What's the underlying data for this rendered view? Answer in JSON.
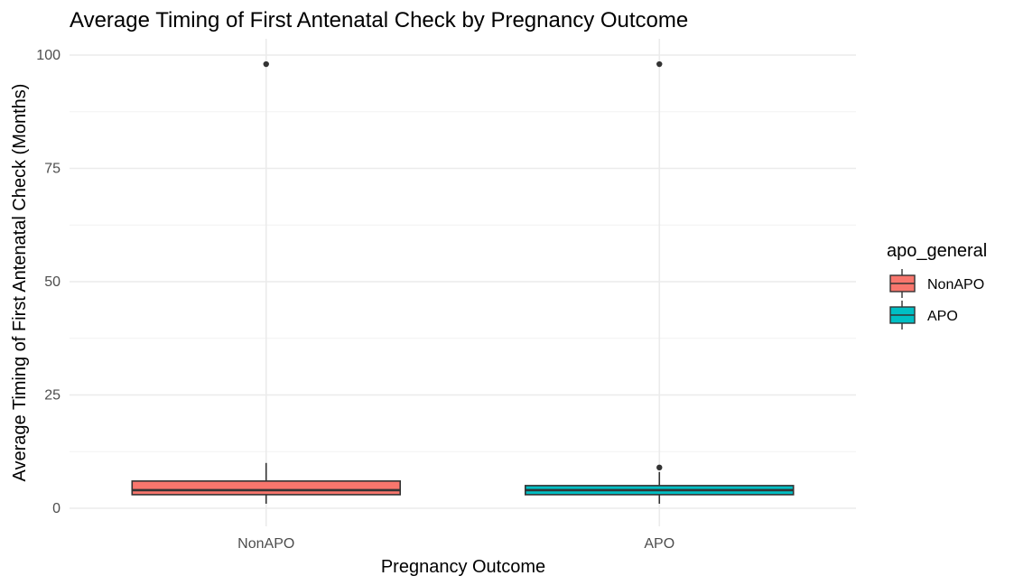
{
  "chart_data": {
    "type": "box",
    "title": "Average Timing of First Antenatal Check by Pregnancy Outcome",
    "xlabel": "Pregnancy Outcome",
    "ylabel": "Average Timing of First Antenatal Check (Months)",
    "ylim": [
      0,
      100
    ],
    "yticks": [
      "0",
      "25",
      "50",
      "75",
      "100"
    ],
    "yticks_values": [
      0,
      25,
      50,
      75,
      100
    ],
    "grid": true,
    "legend": {
      "title": "apo_general",
      "position": "right",
      "entries": [
        "NonAPO",
        "APO"
      ]
    },
    "series": [
      {
        "name": "NonAPO",
        "color": "#f8766d",
        "min": 1,
        "q1": 3,
        "median": 4,
        "q3": 6,
        "max": 10,
        "outliers": [
          98
        ]
      },
      {
        "name": "APO",
        "color": "#00bfc4",
        "min": 1,
        "q1": 3,
        "median": 4,
        "q3": 5,
        "max": 8,
        "outliers": [
          9,
          98
        ]
      }
    ]
  }
}
